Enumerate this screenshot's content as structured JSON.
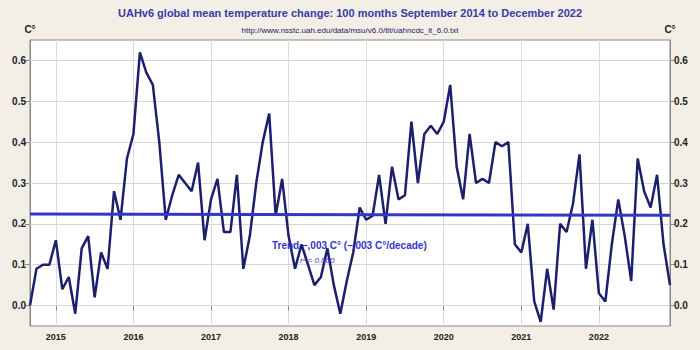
{
  "chart_data": {
    "type": "line",
    "title": "UAHv6 global mean temperature change: 100 months September 2014 to December 2022",
    "subtitle": "http://www.nsstc.uah.edu/data/msu/v6.0/tlt/uahncdc_lt_6.0.txt",
    "y_label": "C°",
    "categories": [
      null,
      null,
      null,
      null,
      "2015",
      null,
      null,
      null,
      null,
      null,
      null,
      null,
      null,
      null,
      null,
      null,
      "2016",
      null,
      null,
      null,
      null,
      null,
      null,
      null,
      null,
      null,
      null,
      null,
      "2017",
      null,
      null,
      null,
      null,
      null,
      null,
      null,
      null,
      null,
      null,
      null,
      "2018",
      null,
      null,
      null,
      null,
      null,
      null,
      null,
      null,
      null,
      null,
      null,
      "2019",
      null,
      null,
      null,
      null,
      null,
      null,
      null,
      null,
      null,
      null,
      null,
      "2020",
      null,
      null,
      null,
      null,
      null,
      null,
      null,
      null,
      null,
      null,
      null,
      "2021",
      null,
      null,
      null,
      null,
      null,
      null,
      null,
      null,
      null,
      null,
      null,
      "2022",
      null,
      null,
      null,
      null,
      null,
      null,
      null,
      null,
      null,
      null,
      null
    ],
    "values": [
      0,
      0.09,
      0.1,
      0.1,
      0.16,
      0.04,
      0.07,
      -0.02,
      0.14,
      0.17,
      0.02,
      0.13,
      0.09,
      0.28,
      0.21,
      0.36,
      0.42,
      0.62,
      0.57,
      0.54,
      0.4,
      0.21,
      0.27,
      0.32,
      0.3,
      0.28,
      0.35,
      0.16,
      0.26,
      0.31,
      0.18,
      0.18,
      0.32,
      0.09,
      0.17,
      0.3,
      0.4,
      0.47,
      0.22,
      0.31,
      0.17,
      0.09,
      0.15,
      0.1,
      0.05,
      0.07,
      0.14,
      0.05,
      -0.02,
      0.06,
      0.13,
      0.24,
      0.21,
      0.22,
      0.32,
      0.2,
      0.34,
      0.26,
      0.27,
      0.45,
      0.3,
      0.42,
      0.44,
      0.42,
      0.45,
      0.54,
      0.34,
      0.26,
      0.42,
      0.3,
      0.31,
      0.3,
      0.4,
      0.39,
      0.4,
      0.15,
      0.13,
      0.2,
      0.01,
      -0.04,
      0.09,
      -0.01,
      0.2,
      0.18,
      0.25,
      0.37,
      0.09,
      0.21,
      0.03,
      0.01,
      0.15,
      0.26,
      0.17,
      0.06,
      0.36,
      0.28,
      0.24,
      0.32,
      0.15,
      0.05
    ],
    "color": "#1c1f6b",
    "marker": "none",
    "trend": {
      "label": "Trend –,003 C° (–,003 C°/decade)",
      "r2_label": "r² = 0.000",
      "start": 0.224,
      "end": 0.221,
      "color": "#3535c8"
    },
    "ylim": [
      -0.05,
      0.65
    ],
    "yticks": [
      {
        "value": 0,
        "label": "0.0"
      },
      0.1,
      0.2,
      0.3,
      0.4,
      0.5,
      0.6
    ],
    "grid": true
  }
}
